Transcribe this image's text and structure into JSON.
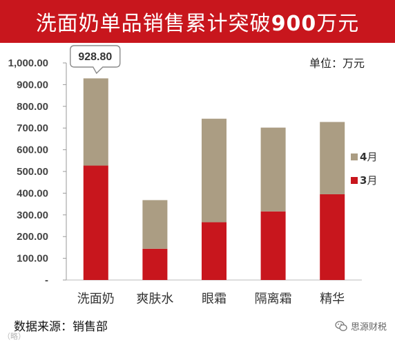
{
  "title": {
    "prefix": "洗面奶单品销售累计突破",
    "highlight": "900",
    "suffix": "万元"
  },
  "unit": "单位：万元",
  "source": "数据来源：销售部",
  "brand": "思源财税",
  "watermark": "（略）",
  "colors": {
    "title_bg": "#c8161d",
    "march": "#c8161d",
    "april": "#ab9d83",
    "axis": "#999999"
  },
  "chart_data": {
    "type": "bar",
    "stacked": true,
    "categories": [
      "洗面奶",
      "爽肤水",
      "眼霜",
      "隔离霜",
      "精华"
    ],
    "series": [
      {
        "name": "3月",
        "name_num": "3",
        "name_unit": "月",
        "values": [
          527,
          144,
          266,
          316,
          395
        ],
        "color": "#c8161d"
      },
      {
        "name": "4月",
        "name_num": "4",
        "name_unit": "月",
        "values": [
          401.8,
          224,
          477,
          386,
          333
        ],
        "color": "#ab9d83"
      }
    ],
    "ylim": [
      0,
      1000
    ],
    "yticks": [
      {
        "value": 0,
        "label": "-"
      },
      {
        "value": 100,
        "label": "100.00"
      },
      {
        "value": 200,
        "label": "200.00"
      },
      {
        "value": 300,
        "label": "300.00"
      },
      {
        "value": 400,
        "label": "400.00"
      },
      {
        "value": 500,
        "label": "500.00"
      },
      {
        "value": 600,
        "label": "600.00"
      },
      {
        "value": 700,
        "label": "700.00"
      },
      {
        "value": 800,
        "label": "800.00"
      },
      {
        "value": 900,
        "label": "900.00"
      },
      {
        "value": 1000,
        "label": "1,000.00"
      }
    ],
    "annotation": {
      "category": "洗面奶",
      "value": 928.8,
      "label": "928.80"
    },
    "legend_position": "right",
    "grid": false
  }
}
